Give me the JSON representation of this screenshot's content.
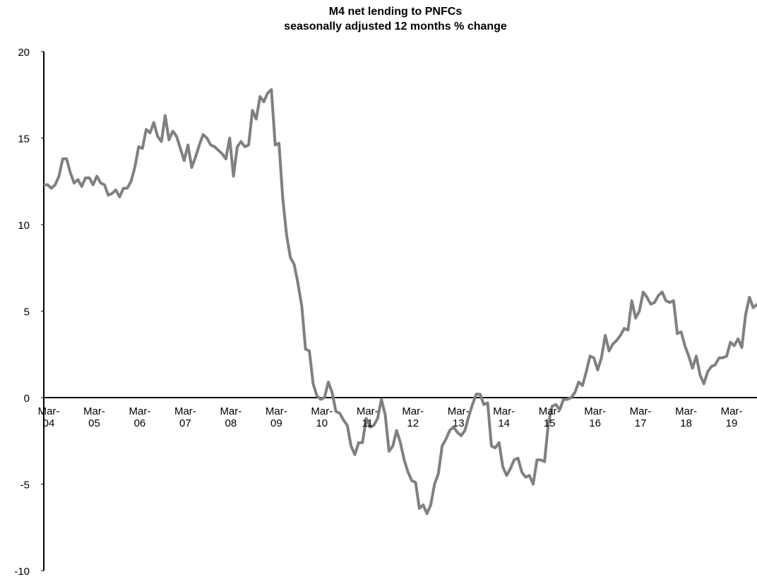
{
  "chart_data": {
    "type": "line",
    "title": "M4 net lending to PNFCs",
    "subtitle": "seasonally adjusted 12 months % change",
    "categories": [
      "Mar-04",
      null,
      null,
      null,
      null,
      null,
      null,
      null,
      null,
      null,
      null,
      null,
      "Mar-05",
      null,
      null,
      null,
      null,
      null,
      null,
      null,
      null,
      null,
      null,
      null,
      "Mar-06",
      null,
      null,
      null,
      null,
      null,
      null,
      null,
      null,
      null,
      null,
      null,
      "Mar-07",
      null,
      null,
      null,
      null,
      null,
      null,
      null,
      null,
      null,
      null,
      null,
      "Mar-08",
      null,
      null,
      null,
      null,
      null,
      null,
      null,
      null,
      null,
      null,
      null,
      "Mar-09",
      null,
      null,
      null,
      null,
      null,
      null,
      null,
      null,
      null,
      null,
      null,
      "Mar-10",
      null,
      null,
      null,
      null,
      null,
      null,
      null,
      null,
      null,
      null,
      null,
      "Mar-11",
      null,
      null,
      null,
      null,
      null,
      null,
      null,
      null,
      null,
      null,
      null,
      "Mar-12",
      null,
      null,
      null,
      null,
      null,
      null,
      null,
      null,
      null,
      null,
      null,
      "Mar-13",
      null,
      null,
      null,
      null,
      null,
      null,
      null,
      null,
      null,
      null,
      null,
      "Mar-14",
      null,
      null,
      null,
      null,
      null,
      null,
      null,
      null,
      null,
      null,
      null,
      "Mar-15",
      null,
      null,
      null,
      null,
      null,
      null,
      null,
      null,
      null,
      null,
      null,
      "Mar-16",
      null,
      null,
      null,
      null,
      null,
      null,
      null,
      null,
      null,
      null,
      null,
      "Mar-17",
      null,
      null,
      null,
      null,
      null,
      null,
      null,
      null,
      null,
      null,
      null,
      "Mar-18",
      null,
      null,
      null,
      null,
      null,
      null,
      null,
      null,
      null,
      null,
      null,
      "Mar-19",
      null,
      null,
      null,
      null,
      null,
      null,
      null,
      null
    ],
    "color": "#808080",
    "values": [
      12.3,
      12.3,
      12.1,
      12.3,
      12.8,
      13.8,
      13.8,
      13.0,
      12.4,
      12.6,
      12.2,
      12.7,
      12.7,
      12.3,
      12.8,
      12.4,
      12.3,
      11.7,
      11.8,
      12.0,
      11.6,
      12.1,
      12.1,
      12.5,
      13.3,
      14.5,
      14.4,
      15.5,
      15.3,
      15.9,
      15.1,
      14.8,
      16.3,
      14.9,
      15.4,
      15.1,
      14.4,
      13.7,
      14.6,
      13.3,
      13.9,
      14.6,
      15.2,
      15.0,
      14.6,
      14.5,
      14.3,
      14.1,
      13.8,
      15.0,
      12.8,
      14.5,
      14.8,
      14.5,
      14.6,
      16.6,
      16.1,
      17.4,
      17.1,
      17.6,
      17.8,
      14.6,
      14.7,
      11.5,
      9.4,
      8.1,
      7.7,
      6.6,
      5.3,
      2.8,
      2.7,
      0.8,
      0.1,
      -0.1,
      0.0,
      0.9,
      0.3,
      -0.8,
      -0.9,
      -1.3,
      -1.6,
      -2.8,
      -3.3,
      -2.6,
      -2.6,
      -1.2,
      -1.7,
      -1.6,
      -1.2,
      -0.1,
      -1.0,
      -3.1,
      -2.8,
      -1.9,
      -2.6,
      -3.6,
      -4.3,
      -4.8,
      -4.9,
      -6.4,
      -6.2,
      -6.7,
      -6.2,
      -5.0,
      -4.4,
      -2.8,
      -2.4,
      -1.9,
      -1.7,
      -2.0,
      -2.2,
      -1.9,
      -1.1,
      -0.4,
      0.2,
      0.2,
      -0.4,
      -0.3,
      -2.8,
      -2.9,
      -2.6,
      -4.0,
      -4.5,
      -4.1,
      -3.6,
      -3.5,
      -4.3,
      -4.6,
      -4.5,
      -5.0,
      -3.6,
      -3.6,
      -3.7,
      -1.5,
      -0.5,
      -0.4,
      -0.7,
      -0.1,
      -0.1,
      0.0,
      0.3,
      0.9,
      0.7,
      1.5,
      2.4,
      2.3,
      1.6,
      2.3,
      3.6,
      2.7,
      3.1,
      3.3,
      3.6,
      4.0,
      3.9,
      5.6,
      4.6,
      5.0,
      6.1,
      5.8,
      5.4,
      5.5,
      5.9,
      6.1,
      5.6,
      5.5,
      5.6,
      3.7,
      3.8,
      3.0,
      2.4,
      1.7,
      2.4,
      1.3,
      0.8,
      1.5,
      1.8,
      1.9,
      2.3,
      2.3,
      2.4,
      3.2,
      3.0,
      3.4,
      2.9,
      4.8,
      5.8,
      5.2,
      5.4
    ],
    "ylim": [
      -10,
      20
    ],
    "yticks": [
      -10,
      -5,
      0,
      5,
      10,
      15,
      20
    ],
    "grid": false
  }
}
